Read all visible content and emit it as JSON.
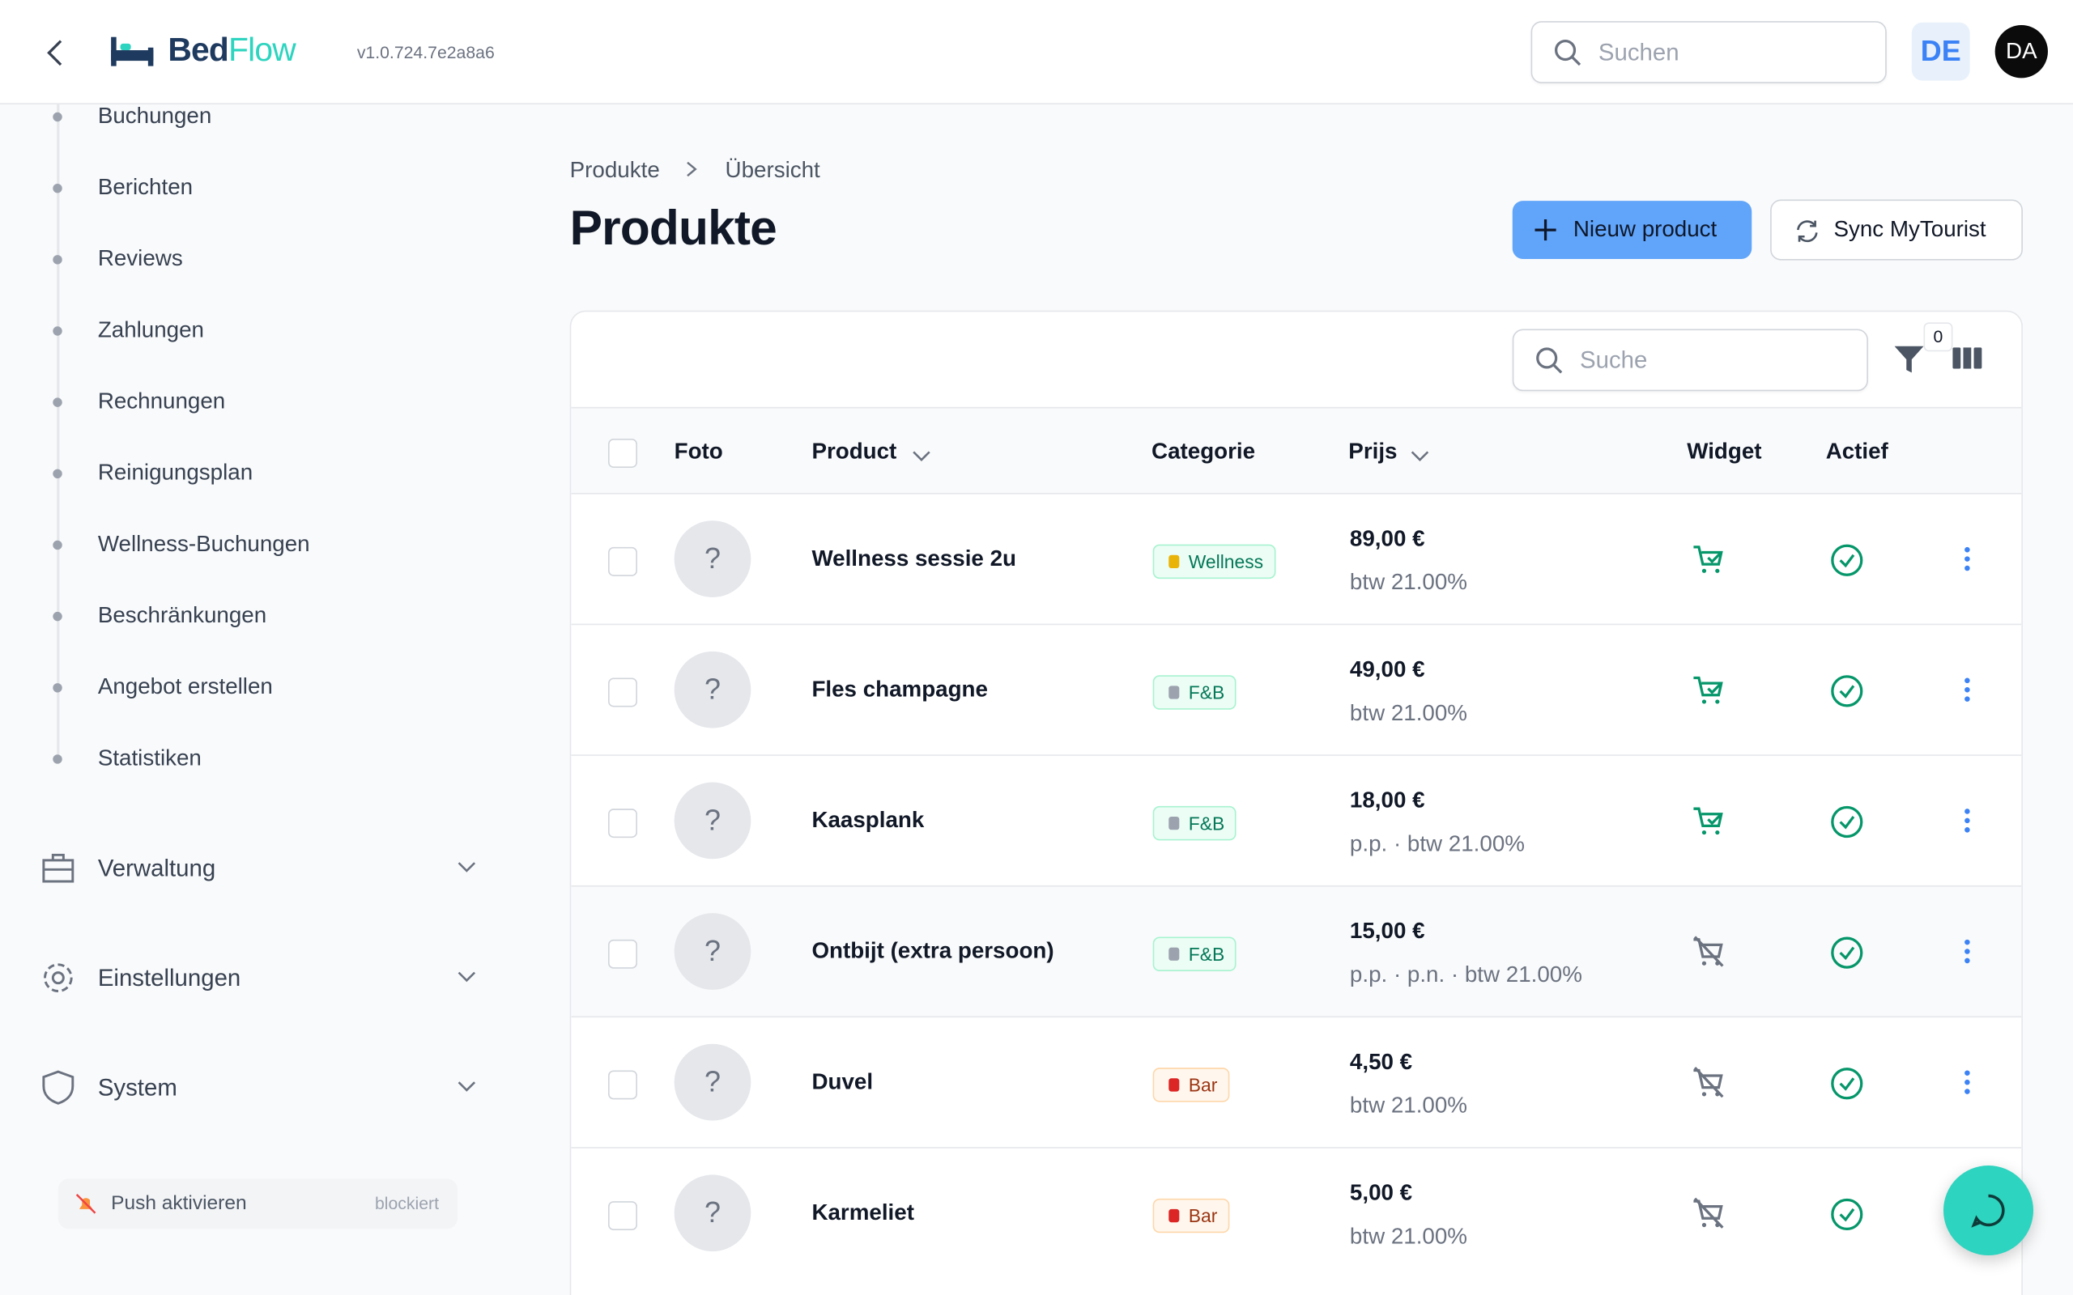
{
  "header": {
    "brand_first": "Bed",
    "brand_second": "Flow",
    "version": "v1.0.724.7e2a8a6",
    "search_placeholder": "Suchen",
    "language": "DE",
    "avatar": "DA"
  },
  "sidebar": {
    "items": [
      "Buchungen",
      "Berichten",
      "Reviews",
      "Zahlungen",
      "Rechnungen",
      "Reinigungsplan",
      "Wellness-Buchungen",
      "Beschränkungen",
      "Angebot erstellen",
      "Statistiken"
    ],
    "groups": [
      "Verwaltung",
      "Einstellungen",
      "System"
    ],
    "push": {
      "label": "Push aktivieren",
      "status": "blockiert"
    }
  },
  "breadcrumb": [
    "Produkte",
    "Übersicht"
  ],
  "title": "Produkte",
  "actions": {
    "new": "Nieuw product",
    "sync": "Sync MyTourist"
  },
  "table": {
    "search_placeholder": "Suche",
    "filter_count": "0",
    "columns": [
      "Foto",
      "Product",
      "Categorie",
      "Prijs",
      "Widget",
      "Actief"
    ],
    "rows": [
      {
        "photo": "?",
        "name": "Wellness sessie 2u",
        "category": "Wellness",
        "price": "89,00 €",
        "tax": "btw 21.00%",
        "widget": true,
        "active": true
      },
      {
        "photo": "?",
        "name": "Fles champagne",
        "category": "F&B",
        "price": "49,00 €",
        "tax": "btw 21.00%",
        "widget": true,
        "active": true
      },
      {
        "photo": "?",
        "name": "Kaasplank",
        "category": "F&B",
        "price": "18,00 €",
        "tax": "p.p. · btw 21.00%",
        "widget": true,
        "active": true
      },
      {
        "photo": "?",
        "name": "Ontbijt (extra persoon)",
        "category": "F&B",
        "price": "15,00 €",
        "tax": "p.p. · p.n. · btw 21.00%",
        "widget": false,
        "active": true
      },
      {
        "photo": "?",
        "name": "Duvel",
        "category": "Bar",
        "price": "4,50 €",
        "tax": "btw 21.00%",
        "widget": false,
        "active": true
      },
      {
        "photo": "?",
        "name": "Karmeliet",
        "category": "Bar",
        "price": "5,00 €",
        "tax": "btw 21.00%",
        "widget": false,
        "active": true
      }
    ]
  }
}
